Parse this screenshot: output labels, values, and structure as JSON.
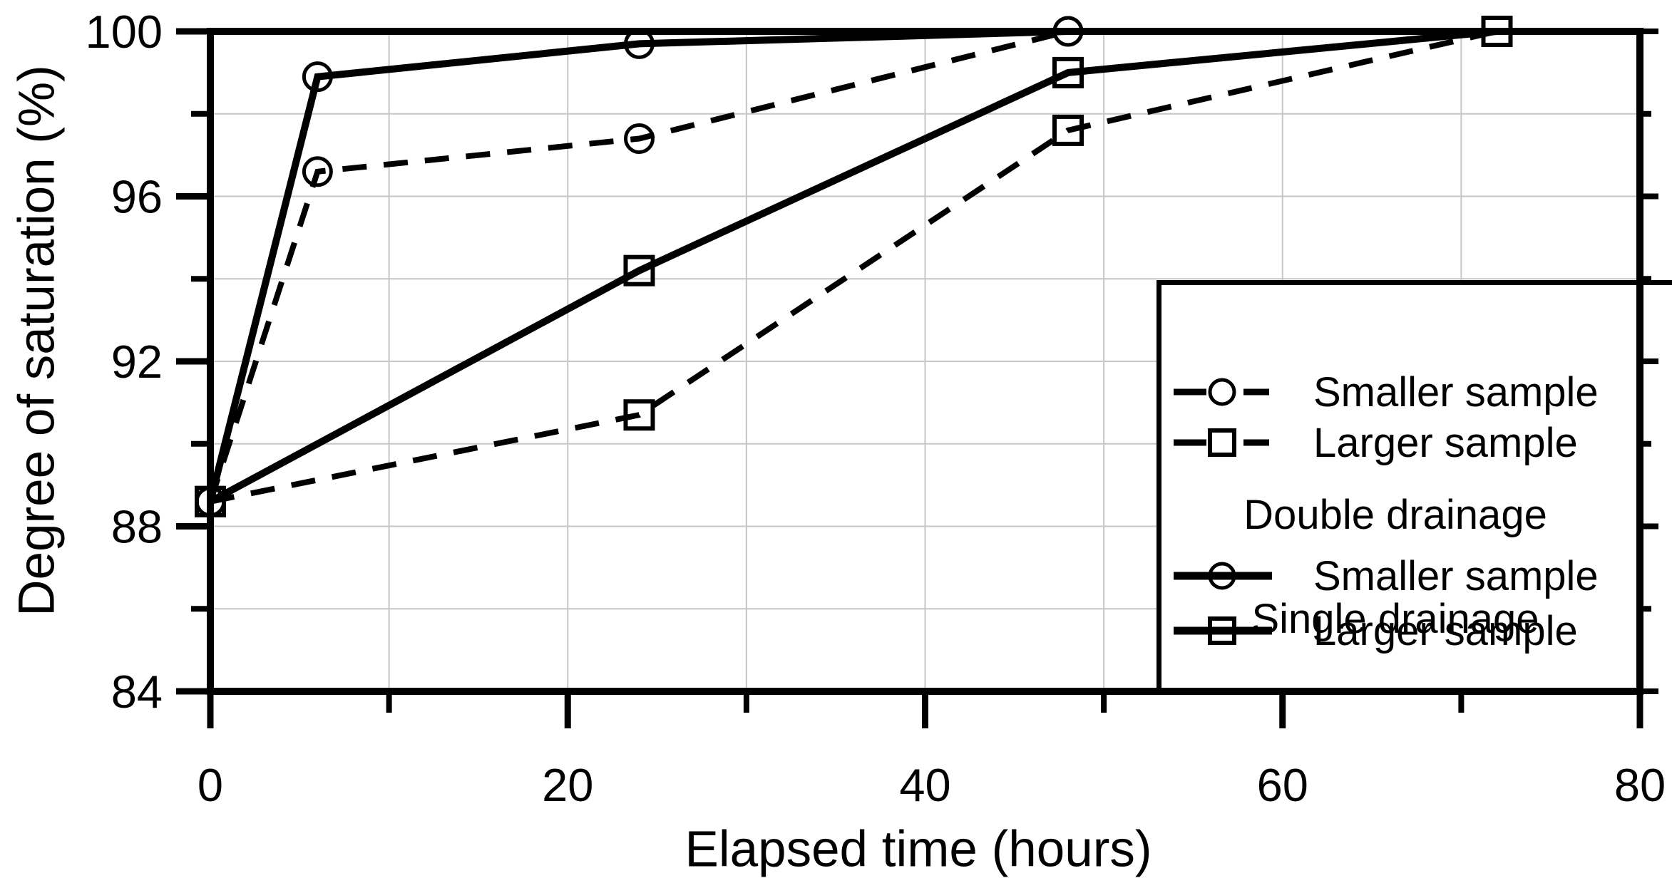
{
  "figure": {
    "background": "#ffffff",
    "line_color": "#000000",
    "grid_color": "#c6c6c6"
  },
  "chart_data": {
    "type": "line",
    "title": "",
    "xlabel": "Elapsed time (hours)",
    "ylabel": "Degree of saturation (%)",
    "xlim": [
      0,
      80
    ],
    "ylim": [
      84,
      100
    ],
    "x_major_ticks": [
      0,
      20,
      40,
      60,
      80
    ],
    "x_minor_ticks": [
      10,
      30,
      50,
      70
    ],
    "y_major_ticks": [
      84,
      88,
      92,
      96,
      100
    ],
    "y_minor_ticks": [
      86,
      90,
      94,
      98
    ],
    "grid": {
      "show": true,
      "vertical_every": 10,
      "horizontal_every": 2
    },
    "series": [
      {
        "id": "single-drainage-smaller-sample",
        "group": "Single drainage",
        "label": "Smaller sample",
        "line": "dashed",
        "marker": "circle",
        "x": [
          0,
          6,
          24,
          48
        ],
        "y": [
          88.6,
          96.6,
          97.4,
          100
        ]
      },
      {
        "id": "single-drainage-larger-sample",
        "group": "Single drainage",
        "label": "Larger sample",
        "line": "dashed",
        "marker": "square",
        "x": [
          0,
          24,
          48,
          72
        ],
        "y": [
          88.6,
          90.7,
          97.6,
          100
        ]
      },
      {
        "id": "double-drainage-smaller-sample",
        "group": "Double drainage",
        "label": "Smaller sample",
        "line": "solid",
        "marker": "circle",
        "x": [
          0,
          6,
          24,
          48
        ],
        "y": [
          88.6,
          98.9,
          99.7,
          100
        ]
      },
      {
        "id": "double-drainage-larger-sample",
        "group": "Double drainage",
        "label": "Larger sample",
        "line": "solid",
        "marker": "square",
        "x": [
          0,
          24,
          48,
          72
        ],
        "y": [
          88.6,
          94.2,
          99.0,
          100
        ]
      }
    ],
    "legend": {
      "position": "bottom-right",
      "groups": [
        {
          "title": "Single drainage",
          "items": [
            {
              "label": "Smaller sample",
              "line": "dashed",
              "marker": "circle"
            },
            {
              "label": "Larger sample",
              "line": "dashed",
              "marker": "square"
            }
          ]
        },
        {
          "title": "Double drainage",
          "items": [
            {
              "label": "Smaller sample",
              "line": "solid",
              "marker": "circle"
            },
            {
              "label": "Larger sample",
              "line": "solid",
              "marker": "square"
            }
          ]
        }
      ]
    }
  }
}
